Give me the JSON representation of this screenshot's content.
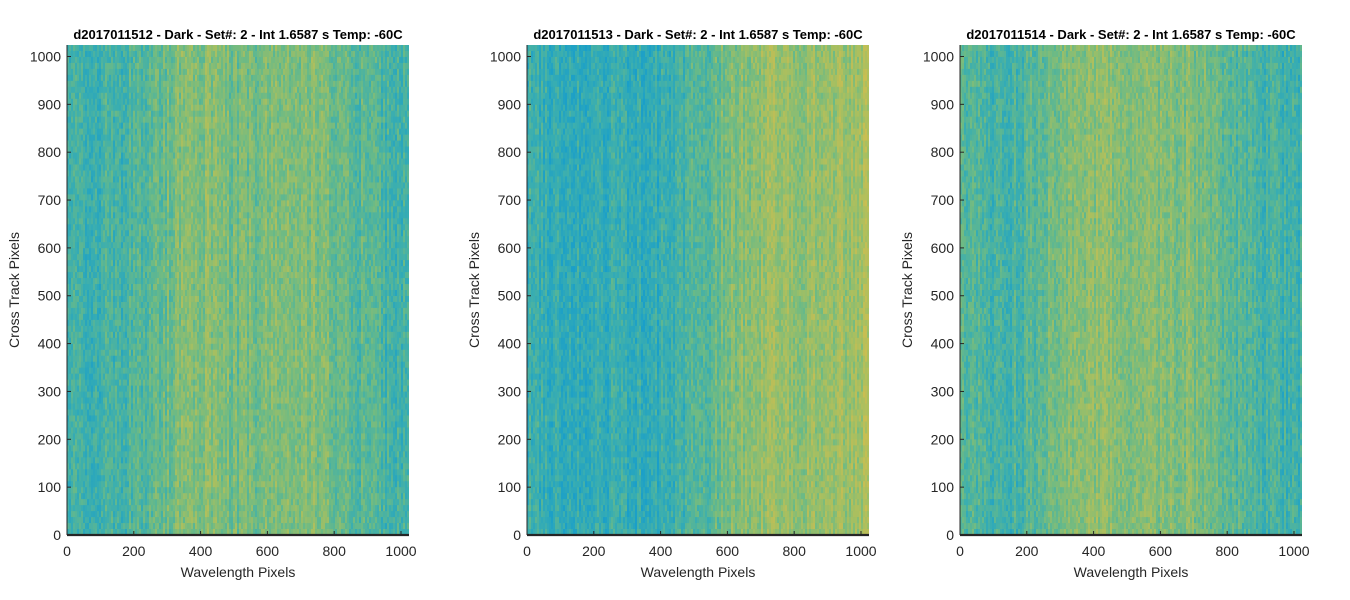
{
  "chart_data": [
    {
      "type": "heatmap",
      "title": "d2017011512 - Dark - Set#: 2 - Int 1.6587 s Temp: -60C",
      "xlabel": "Wavelength Pixels",
      "ylabel": "Cross Track Pixels",
      "xlim": [
        0,
        1024
      ],
      "ylim": [
        0,
        1024
      ],
      "xticks": [
        0,
        200,
        400,
        600,
        800,
        1000
      ],
      "yticks": [
        0,
        100,
        200,
        300,
        400,
        500,
        600,
        700,
        800,
        900,
        1000
      ],
      "colormap": [
        "#1a9fc9",
        "#3aaeb0",
        "#6bba86",
        "#a4bf62",
        "#c9be52"
      ],
      "column_profile": {
        "x": [
          0,
          64,
          128,
          192,
          256,
          320,
          384,
          448,
          512,
          576,
          640,
          704,
          768,
          832,
          896,
          960,
          1024
        ],
        "relative_level": [
          0.25,
          0.27,
          0.3,
          0.34,
          0.42,
          0.55,
          0.62,
          0.6,
          0.52,
          0.55,
          0.6,
          0.62,
          0.58,
          0.48,
          0.4,
          0.33,
          0.3
        ]
      },
      "grid": false
    },
    {
      "type": "heatmap",
      "title": "d2017011513 - Dark - Set#: 2 - Int 1.6587 s Temp: -60C",
      "xlabel": "Wavelength Pixels",
      "ylabel": "Cross Track Pixels",
      "xlim": [
        0,
        1024
      ],
      "ylim": [
        0,
        1024
      ],
      "xticks": [
        0,
        200,
        400,
        600,
        800,
        1000
      ],
      "yticks": [
        0,
        100,
        200,
        300,
        400,
        500,
        600,
        700,
        800,
        900,
        1000
      ],
      "colormap": [
        "#1a9fc9",
        "#3aaeb0",
        "#6bba86",
        "#a4bf62",
        "#c9be52"
      ],
      "column_profile": {
        "x": [
          0,
          64,
          128,
          192,
          256,
          320,
          384,
          448,
          512,
          576,
          640,
          704,
          768,
          832,
          896,
          960,
          1024
        ],
        "relative_level": [
          0.28,
          0.2,
          0.16,
          0.18,
          0.24,
          0.22,
          0.2,
          0.28,
          0.38,
          0.5,
          0.62,
          0.7,
          0.72,
          0.68,
          0.72,
          0.75,
          0.8
        ]
      },
      "grid": false
    },
    {
      "type": "heatmap",
      "title": "d2017011514 - Dark - Set#: 2 - Int 1.6587 s Temp: -60C",
      "xlabel": "Wavelength Pixels",
      "ylabel": "Cross Track Pixels",
      "xlim": [
        0,
        1024
      ],
      "ylim": [
        0,
        1024
      ],
      "xticks": [
        0,
        200,
        400,
        600,
        800,
        1000
      ],
      "yticks": [
        0,
        100,
        200,
        300,
        400,
        500,
        600,
        700,
        800,
        900,
        1000
      ],
      "colormap": [
        "#1a9fc9",
        "#3aaeb0",
        "#6bba86",
        "#a4bf62",
        "#c9be52"
      ],
      "column_profile": {
        "x": [
          0,
          64,
          128,
          192,
          256,
          320,
          384,
          448,
          512,
          576,
          640,
          704,
          768,
          832,
          896,
          960,
          1024
        ],
        "relative_level": [
          0.42,
          0.36,
          0.3,
          0.36,
          0.5,
          0.62,
          0.68,
          0.66,
          0.62,
          0.62,
          0.6,
          0.58,
          0.5,
          0.4,
          0.34,
          0.3,
          0.28
        ]
      },
      "grid": false
    }
  ]
}
